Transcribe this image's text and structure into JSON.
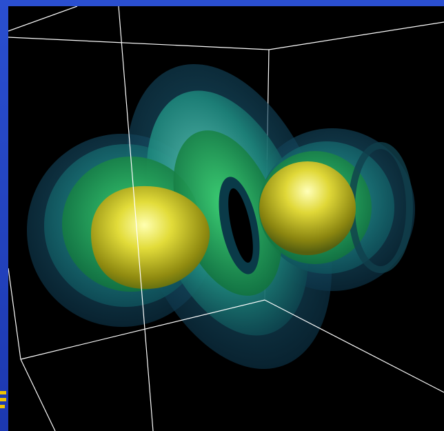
{
  "scene": {
    "subject": "isosurface-rendering",
    "colors": {
      "background": "#000000",
      "frame": "#2a4fd0",
      "wireframe": "#ffffff",
      "core_yellow": "#e8e040",
      "shell_green": "#22c060",
      "shell_teal": "#1a8a8a",
      "shell_blue": "#1c5a7a",
      "marker": "#f0c400"
    }
  }
}
